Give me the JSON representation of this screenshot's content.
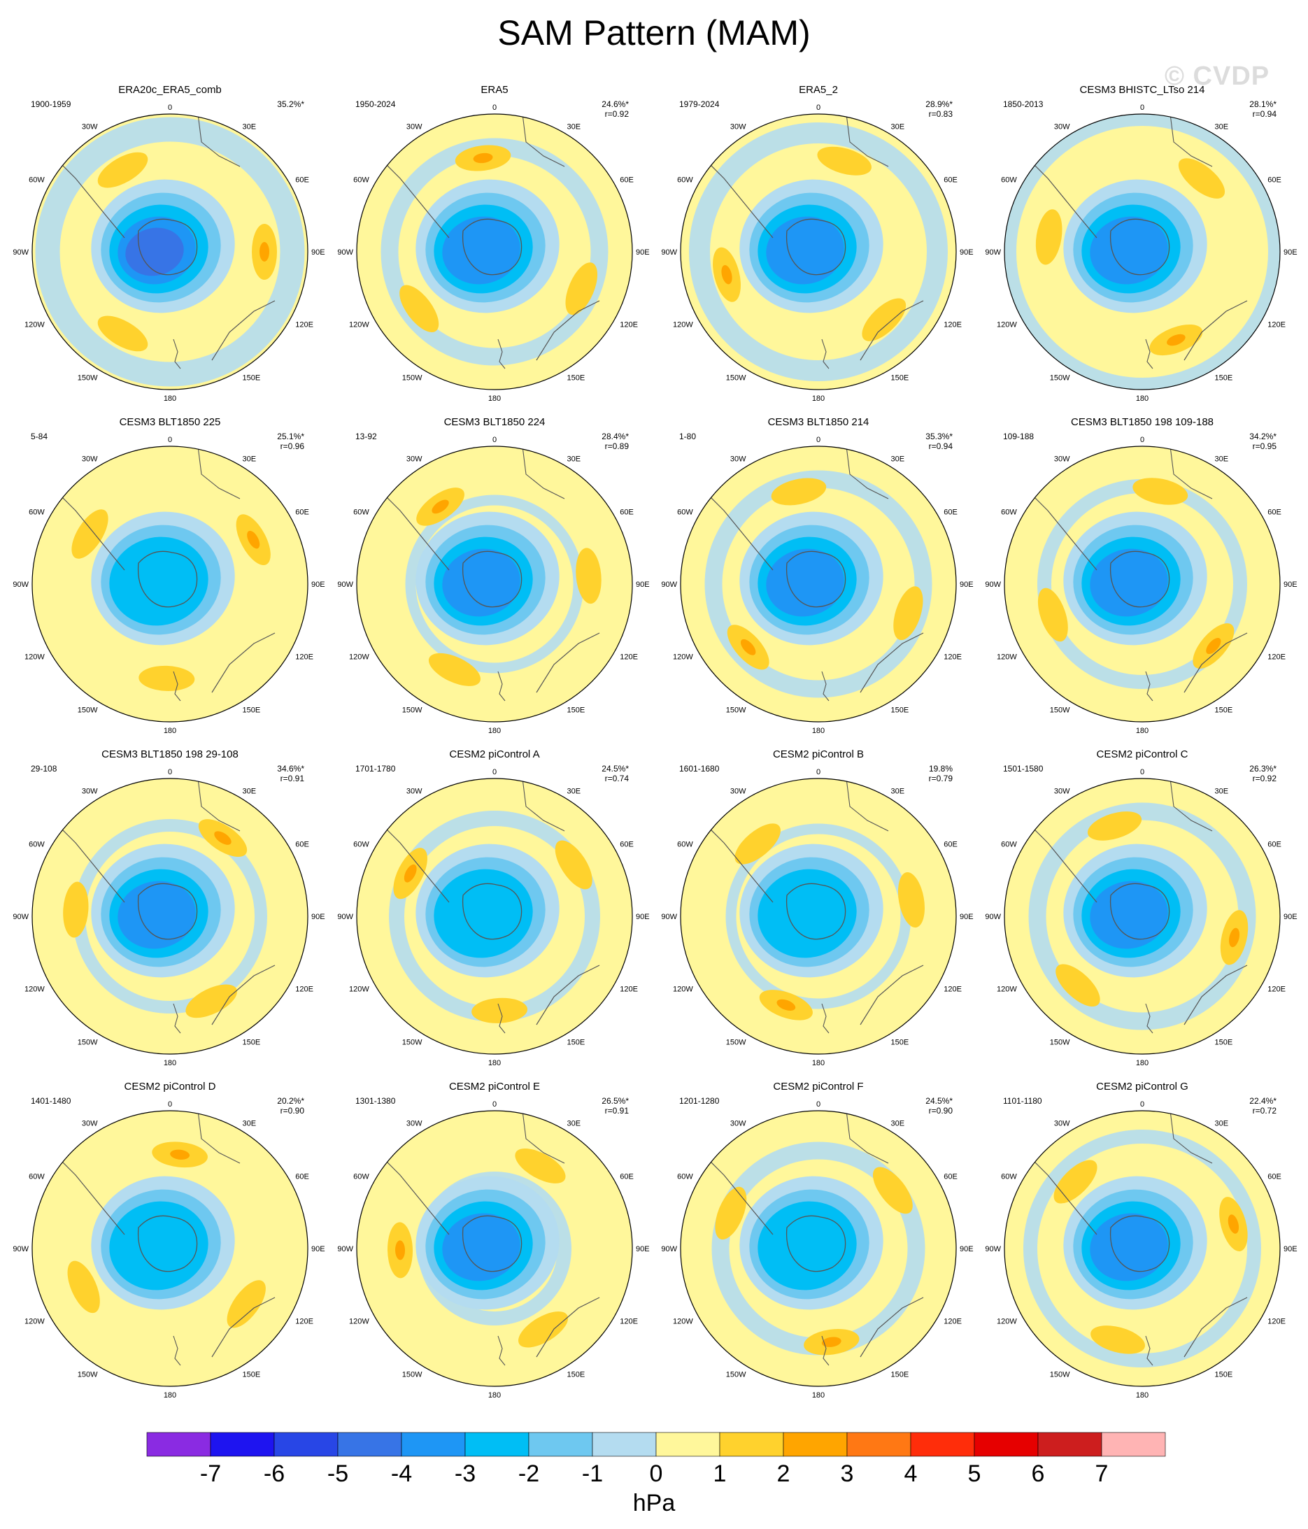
{
  "title": "SAM Pattern (MAM)",
  "watermark": "© CVDP",
  "chart_data": {
    "type": "polar-map-contour-grid",
    "units": "hPa",
    "lon_labels": [
      "0",
      "30E",
      "60E",
      "90E",
      "120E",
      "150E",
      "180",
      "150W",
      "120W",
      "90W",
      "60W",
      "30W"
    ],
    "colorbar": {
      "ticks": [
        "-7",
        "-6",
        "-5",
        "-4",
        "-3",
        "-2",
        "-1",
        "0",
        "1",
        "2",
        "3",
        "4",
        "5",
        "6",
        "7"
      ],
      "colors": [
        "#8a2be2",
        "#1e14f0",
        "#2846e6",
        "#3774e6",
        "#1e96f5",
        "#00bef5",
        "#6ec8f0",
        "#b4dcf0",
        "#fff79b",
        "#ffd22d",
        "#ffa500",
        "#ff7814",
        "#ff2d0a",
        "#e60000",
        "#cd1e1e",
        "#ffb4b4"
      ]
    },
    "panels": [
      {
        "title": "ERA20c_ERA5_comb",
        "period": "1900-1959",
        "pct": "35.2%*",
        "r": ""
      },
      {
        "title": "ERA5",
        "period": "1950-2024",
        "pct": "24.6%*",
        "r": "r=0.92"
      },
      {
        "title": "ERA5_2",
        "period": "1979-2024",
        "pct": "28.9%*",
        "r": "r=0.83"
      },
      {
        "title": "CESM3 BHISTC_LTso 214",
        "period": "1850-2013",
        "pct": "28.1%*",
        "r": "r=0.94"
      },
      {
        "title": "CESM3 BLT1850 225",
        "period": "5-84",
        "pct": "25.1%*",
        "r": "r=0.96"
      },
      {
        "title": "CESM3 BLT1850 224",
        "period": "13-92",
        "pct": "28.4%*",
        "r": "r=0.89"
      },
      {
        "title": "CESM3 BLT1850 214",
        "period": "1-80",
        "pct": "35.3%*",
        "r": "r=0.94"
      },
      {
        "title": "CESM3 BLT1850 198 109-188",
        "period": "109-188",
        "pct": "34.2%*",
        "r": "r=0.95"
      },
      {
        "title": "CESM3 BLT1850 198 29-108",
        "period": "29-108",
        "pct": "34.6%*",
        "r": "r=0.91"
      },
      {
        "title": "CESM2 piControl A",
        "period": "1701-1780",
        "pct": "24.5%*",
        "r": "r=0.74"
      },
      {
        "title": "CESM2 piControl B",
        "period": "1601-1680",
        "pct": "19.8%",
        "r": "r=0.79"
      },
      {
        "title": "CESM2 piControl C",
        "period": "1501-1580",
        "pct": "26.3%*",
        "r": "r=0.92"
      },
      {
        "title": "CESM2 piControl D",
        "period": "1401-1480",
        "pct": "20.2%*",
        "r": "r=0.90"
      },
      {
        "title": "CESM2 piControl E",
        "period": "1301-1380",
        "pct": "26.5%*",
        "r": "r=0.91"
      },
      {
        "title": "CESM2 piControl F",
        "period": "1201-1280",
        "pct": "24.5%*",
        "r": "r=0.90"
      },
      {
        "title": "CESM2 piControl G",
        "period": "1101-1180",
        "pct": "22.4%*",
        "r": "r=0.72"
      }
    ]
  }
}
